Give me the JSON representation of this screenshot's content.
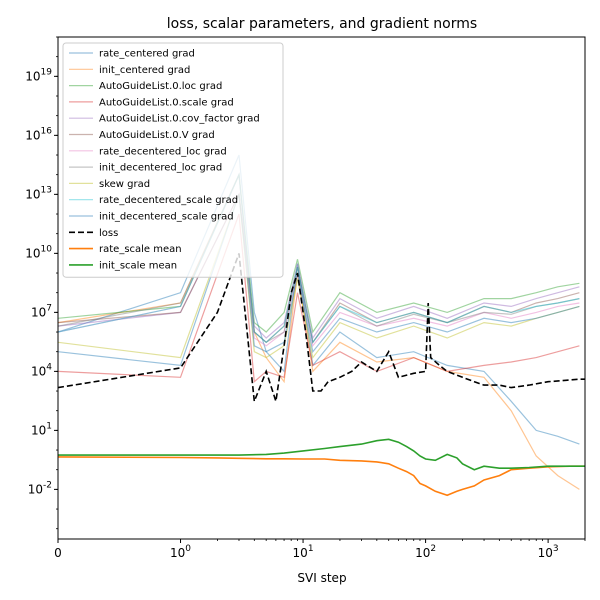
{
  "chart_data": {
    "type": "line",
    "title": "loss, scalar parameters, and gradient norms",
    "xlabel": "SVI step",
    "ylabel": "",
    "xscale": "symlog",
    "yscale": "log",
    "xlim": [
      0,
      2000
    ],
    "ylim": [
      3e-05,
      1000000000000000000000
    ],
    "x_ticks": [
      0,
      1,
      10,
      100,
      1000
    ],
    "x_tick_labels": [
      "0",
      "10^0",
      "10^1",
      "10^2",
      "10^3"
    ],
    "y_ticks": [
      0.01,
      10,
      10000,
      10000000,
      10000000000,
      10000000000000,
      10000000000000000,
      10000000000000000000
    ],
    "y_tick_exponents": [
      "-2",
      "1",
      "4",
      "7",
      "10",
      "13",
      "16",
      "19"
    ],
    "grid": false,
    "legend_position": "upper-left",
    "series": [
      {
        "name": "rate_centered grad",
        "color": "#1f77b4",
        "style": "solid",
        "alpha": 0.45,
        "x": [
          0,
          1,
          3,
          4,
          5,
          7,
          9,
          12,
          20,
          40,
          80,
          150,
          300,
          500,
          800,
          1200,
          1800
        ],
        "y": [
          1000000,
          100000000,
          1000000000000000,
          10000000,
          100000,
          10000,
          3000000000,
          20000,
          1000000,
          50000,
          100000,
          20000,
          10000,
          300,
          10,
          5,
          2
        ]
      },
      {
        "name": "init_centered grad",
        "color": "#ff7f0e",
        "style": "solid",
        "alpha": 0.45,
        "x": [
          0,
          1,
          3,
          4,
          5,
          7,
          9,
          12,
          20,
          40,
          80,
          150,
          300,
          500,
          800,
          1200,
          1800
        ],
        "y": [
          3000000,
          30000000,
          100000000000000,
          1000000,
          50000,
          3000,
          1000000000,
          10000,
          300000,
          30000,
          50000,
          10000,
          5000,
          100,
          0.5,
          0.05,
          0.01
        ]
      },
      {
        "name": "AutoGuideList.0.loc grad",
        "color": "#2ca02c",
        "style": "solid",
        "alpha": 0.45,
        "x": [
          0,
          1,
          3,
          4,
          5,
          7,
          9,
          12,
          20,
          40,
          80,
          150,
          300,
          500,
          800,
          1200,
          1800
        ],
        "y": [
          5000000,
          20000000,
          100000000000000,
          3000000,
          1000000,
          10000000,
          5000000000,
          1000000,
          100000000,
          10000000,
          30000000,
          10000000,
          50000000,
          50000000,
          100000000,
          200000000,
          300000000
        ]
      },
      {
        "name": "AutoGuideList.0.scale grad",
        "color": "#d62728",
        "style": "solid",
        "alpha": 0.45,
        "x": [
          0,
          1,
          3,
          4,
          5,
          7,
          9,
          12,
          20,
          40,
          80,
          150,
          300,
          500,
          800,
          1200,
          1800
        ],
        "y": [
          10000,
          5000,
          1000000000000,
          3000,
          10000,
          5000,
          100000000,
          20000,
          100000,
          10000,
          50000,
          10000,
          20000,
          30000,
          50000,
          100000,
          200000
        ]
      },
      {
        "name": "AutoGuideList.0.cov_factor grad",
        "color": "#9467bd",
        "style": "solid",
        "alpha": 0.45,
        "x": [
          0,
          1,
          3,
          4,
          5,
          7,
          9,
          12,
          20,
          40,
          80,
          150,
          300,
          500,
          800,
          1200,
          1800
        ],
        "y": [
          2000000,
          10000000,
          10000000000000,
          2000000,
          500000,
          3000000,
          3000000000,
          500000,
          50000000,
          5000000,
          20000000,
          5000000,
          30000000,
          20000000,
          50000000,
          100000000,
          200000000
        ]
      },
      {
        "name": "AutoGuideList.0.V grad",
        "color": "#8c564b",
        "style": "solid",
        "alpha": 0.45,
        "x": [
          0,
          1,
          3,
          4,
          5,
          7,
          9,
          12,
          20,
          40,
          80,
          150,
          300,
          500,
          800,
          1200,
          1800
        ],
        "y": [
          3000000,
          10000000,
          10000000000000,
          1000000,
          300000,
          2000000,
          2000000000,
          300000,
          30000000,
          3000000,
          10000000,
          3000000,
          20000000,
          10000000,
          30000000,
          50000000,
          100000000
        ]
      },
      {
        "name": "rate_decentered_loc grad",
        "color": "#e377c2",
        "style": "solid",
        "alpha": 0.45,
        "x": [
          0,
          1,
          3,
          4,
          5,
          7,
          9,
          12,
          20,
          40,
          80,
          150,
          300,
          500,
          800,
          1200,
          1800
        ],
        "y": [
          1000000,
          20000000,
          100000000000000,
          500000,
          200000,
          1000000,
          1000000000,
          200000,
          10000000,
          2000000,
          5000000,
          2000000,
          10000000,
          5000000,
          10000000,
          20000000,
          30000000
        ]
      },
      {
        "name": "init_decentered_loc grad",
        "color": "#7f7f7f",
        "style": "solid",
        "alpha": 0.45,
        "x": [
          0,
          1,
          3,
          4,
          5,
          7,
          9,
          12,
          20,
          40,
          80,
          150,
          300,
          500,
          800,
          1200,
          1800
        ],
        "y": [
          2000000,
          30000000,
          100000000000000,
          1000000,
          300000,
          1000000,
          2000000000,
          300000,
          20000000,
          2000000,
          8000000,
          3000000,
          10000000,
          8000000,
          20000000,
          30000000,
          50000000
        ]
      },
      {
        "name": "skew grad",
        "color": "#bcbd22",
        "style": "solid",
        "alpha": 0.45,
        "x": [
          0,
          1,
          3,
          4,
          5,
          7,
          9,
          12,
          20,
          40,
          80,
          150,
          300,
          500,
          800,
          1200,
          1800
        ],
        "y": [
          300000,
          50000,
          10000000000000,
          100000,
          50000,
          200000,
          500000000,
          50000,
          3000000,
          500000,
          2000000,
          500000,
          3000000,
          2000000,
          5000000,
          10000000,
          20000000
        ]
      },
      {
        "name": "rate_decentered_scale grad",
        "color": "#17becf",
        "style": "solid",
        "alpha": 0.45,
        "x": [
          0,
          1,
          3,
          4,
          5,
          7,
          9,
          12,
          20,
          40,
          80,
          150,
          300,
          500,
          800,
          1200,
          1800
        ],
        "y": [
          1000000,
          20000000,
          100000000000000,
          1000000,
          300000,
          2000000,
          2000000000,
          300000,
          20000000,
          3000000,
          10000000,
          3000000,
          20000000,
          10000000,
          20000000,
          30000000,
          50000000
        ]
      },
      {
        "name": "init_decentered_scale grad",
        "color": "#1f77b4",
        "style": "solid",
        "alpha": 0.45,
        "x": [
          0,
          1,
          3,
          4,
          5,
          7,
          9,
          12,
          20,
          40,
          80,
          150,
          300,
          500,
          800,
          1200,
          1800
        ],
        "y": [
          100000,
          20000,
          10000000000000,
          200000,
          100000,
          300000,
          1000000000,
          100000,
          5000000,
          1000000,
          3000000,
          1000000,
          5000000,
          3000000,
          5000000,
          10000000,
          20000000
        ]
      },
      {
        "name": "loss",
        "color": "#000000",
        "style": "dashed",
        "alpha": 1.0,
        "x": [
          0,
          1,
          2,
          3,
          4,
          5,
          6,
          7,
          8,
          9,
          10,
          11,
          12,
          14,
          16,
          20,
          25,
          30,
          40,
          50,
          60,
          80,
          100,
          105,
          110,
          130,
          150,
          200,
          250,
          300,
          400,
          500,
          700,
          1000,
          1400,
          1800,
          2000
        ],
        "y": [
          1500,
          15000,
          10000000,
          10000000000,
          300,
          10000,
          300,
          200000,
          100000000,
          1000000000,
          10000000,
          100000,
          1000,
          1000,
          3000,
          5000,
          10000,
          30000,
          10000,
          100000,
          5000,
          8000,
          10000,
          30000000,
          50000,
          20000,
          10000,
          5000,
          3000,
          2000,
          2000,
          1500,
          2000,
          3000,
          3500,
          4000,
          4000
        ]
      },
      {
        "name": "rate_scale mean",
        "color": "#ff7f0e",
        "style": "solid",
        "alpha": 1.0,
        "x": [
          0,
          1,
          2,
          3,
          5,
          7,
          10,
          15,
          20,
          30,
          40,
          50,
          60,
          70,
          80,
          90,
          100,
          120,
          150,
          180,
          200,
          250,
          300,
          400,
          500,
          700,
          1000,
          1500,
          2000
        ],
        "y": [
          0.45,
          0.42,
          0.4,
          0.38,
          0.36,
          0.36,
          0.35,
          0.35,
          0.3,
          0.28,
          0.25,
          0.2,
          0.12,
          0.08,
          0.05,
          0.02,
          0.015,
          0.008,
          0.005,
          0.008,
          0.01,
          0.015,
          0.03,
          0.05,
          0.1,
          0.12,
          0.14,
          0.15,
          0.15
        ]
      },
      {
        "name": "init_scale mean",
        "color": "#2ca02c",
        "style": "solid",
        "alpha": 1.0,
        "x": [
          0,
          1,
          2,
          3,
          5,
          7,
          10,
          15,
          20,
          30,
          40,
          50,
          60,
          70,
          80,
          90,
          100,
          120,
          150,
          180,
          200,
          250,
          300,
          400,
          500,
          700,
          1000,
          1500,
          2000
        ],
        "y": [
          0.55,
          0.55,
          0.55,
          0.55,
          0.6,
          0.7,
          0.9,
          1.2,
          1.5,
          2.0,
          3.0,
          3.5,
          2.5,
          1.5,
          0.9,
          0.5,
          0.35,
          0.3,
          0.6,
          0.4,
          0.2,
          0.1,
          0.15,
          0.12,
          0.12,
          0.13,
          0.15,
          0.15,
          0.15
        ]
      }
    ]
  }
}
